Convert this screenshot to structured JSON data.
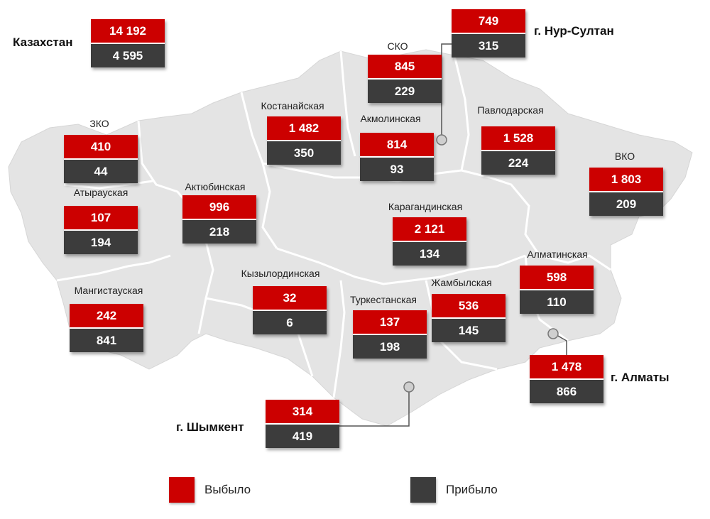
{
  "country": {
    "name": "Казахстан",
    "out": "14 192",
    "in": "4 595"
  },
  "regions": {
    "sko": {
      "name": "СКО",
      "out": "845",
      "in": "229"
    },
    "kos": {
      "name": "Костанайская",
      "out": "1 482",
      "in": "350"
    },
    "akm": {
      "name": "Акмолинская",
      "out": "814",
      "in": "93"
    },
    "pav": {
      "name": "Павлодарская",
      "out": "1 528",
      "in": "224"
    },
    "zko": {
      "name": "ЗКО",
      "out": "410",
      "in": "44"
    },
    "atyr": {
      "name": "Атырауская",
      "out": "107",
      "in": "194"
    },
    "akt": {
      "name": "Актюбинская",
      "out": "996",
      "in": "218"
    },
    "vko": {
      "name": "ВКО",
      "out": "1 803",
      "in": "209"
    },
    "kar": {
      "name": "Карагандинская",
      "out": "2 121",
      "in": "134"
    },
    "alm": {
      "name": "Алматинская",
      "out": "598",
      "in": "110"
    },
    "kyz": {
      "name": "Кызылординская",
      "out": "32",
      "in": "6"
    },
    "zham": {
      "name": "Жамбылская",
      "out": "536",
      "in": "145"
    },
    "turk": {
      "name": "Туркестанская",
      "out": "137",
      "in": "198"
    },
    "mang": {
      "name": "Мангистауская",
      "out": "242",
      "in": "841"
    }
  },
  "cities": {
    "nur": {
      "name": "г. Нур-Султан",
      "out": "749",
      "in": "315"
    },
    "almaty": {
      "name": "г. Алматы",
      "out": "1 478",
      "in": "866"
    },
    "shym": {
      "name": "г. Шымкент",
      "out": "314",
      "in": "419"
    }
  },
  "legend": {
    "out_label": "Выбыло",
    "in_label": "Прибыло"
  },
  "colors": {
    "out": "#cc0000",
    "in": "#3c3c3c",
    "map": "#e4e4e4",
    "borders": "#ffffff"
  }
}
